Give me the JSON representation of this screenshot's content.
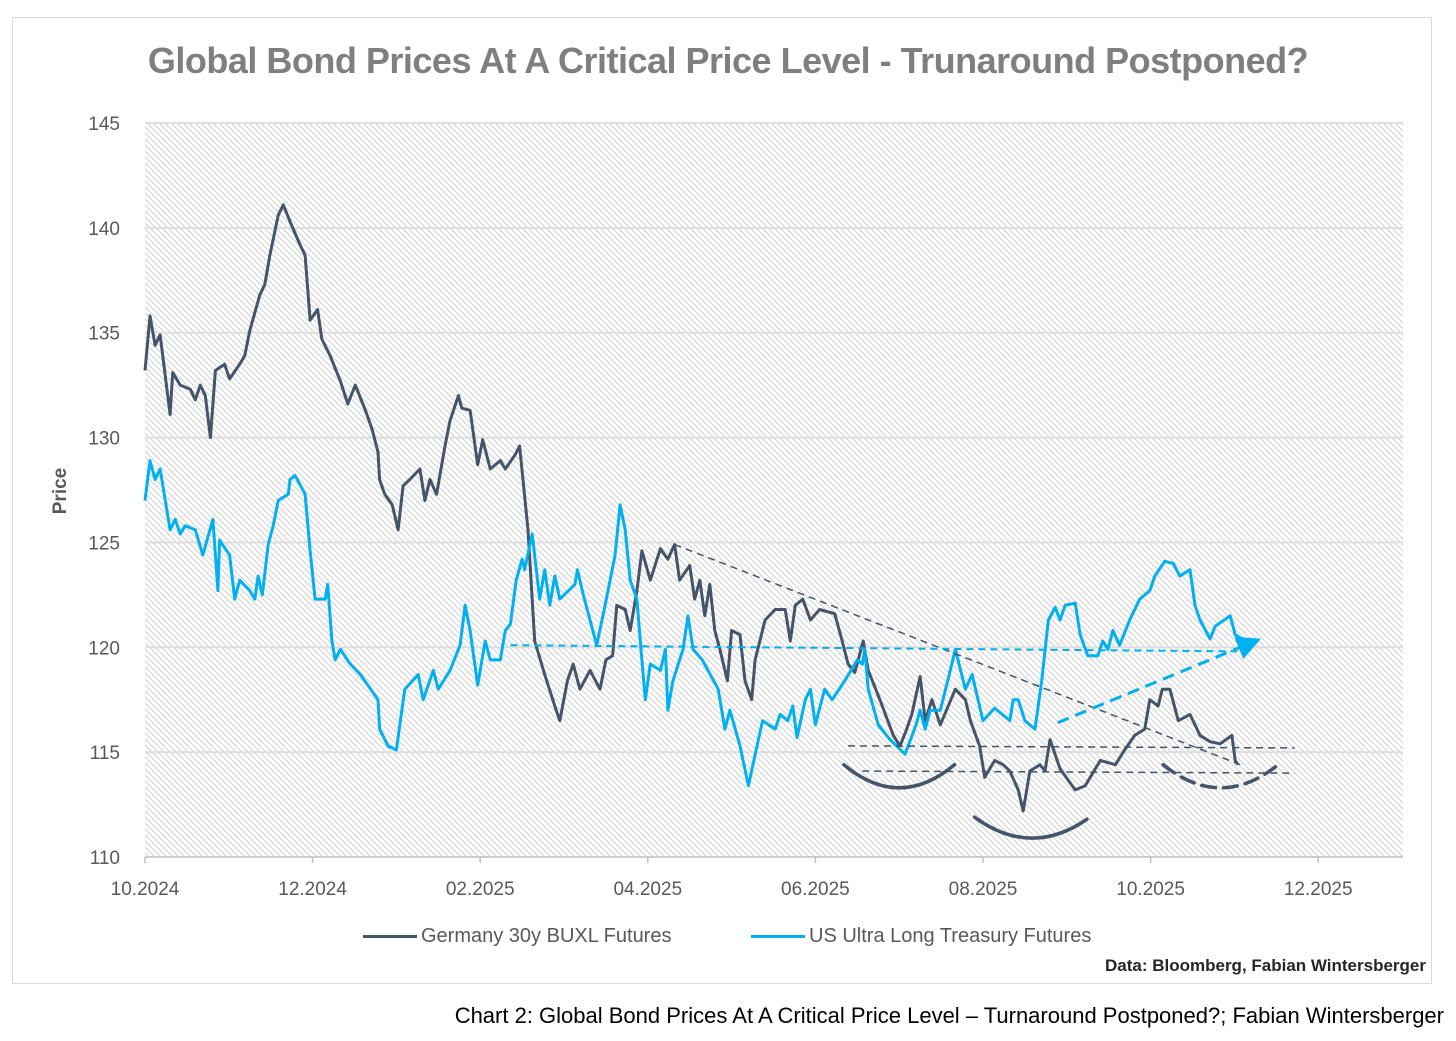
{
  "chart_data": {
    "type": "line",
    "title": "Global Bond Prices At A Critical Price Level - Trunaround Postponed?",
    "xlabel": "",
    "ylabel": "Price",
    "ylim": [
      110,
      145
    ],
    "yticks": [
      110,
      115,
      120,
      125,
      130,
      135,
      140,
      145
    ],
    "x_unit": "months since 10.2024",
    "xlim": [
      0,
      15
    ],
    "xtick_labels": [
      "10.2024",
      "12.2024",
      "02.2025",
      "04.2025",
      "06.2025",
      "08.2025",
      "10.2025",
      "12.2025"
    ],
    "xtick_values": [
      0,
      2,
      4,
      6,
      8,
      10,
      12,
      14
    ],
    "grid": "horizontal",
    "legend_position": "bottom",
    "colors": {
      "germany": "#44546a",
      "us": "#00b0f0",
      "grid": "#dedede",
      "hatch": "#d0d0d0"
    },
    "series": [
      {
        "name": "Germany 30y BUXL Futures",
        "color": "#44546a",
        "x": [
          0.0,
          0.06,
          0.12,
          0.18,
          0.3,
          0.33,
          0.42,
          0.54,
          0.6,
          0.66,
          0.72,
          0.78,
          0.84,
          0.95,
          1.01,
          1.13,
          1.19,
          1.25,
          1.37,
          1.43,
          1.49,
          1.59,
          1.65,
          1.73,
          1.85,
          1.91,
          1.97,
          2.06,
          2.11,
          2.21,
          2.33,
          2.42,
          2.51,
          2.63,
          2.71,
          2.78,
          2.8,
          2.86,
          2.95,
          3.02,
          3.08,
          3.16,
          3.28,
          3.34,
          3.4,
          3.48,
          3.58,
          3.64,
          3.74,
          3.78,
          3.88,
          3.97,
          4.03,
          4.12,
          4.24,
          4.3,
          4.42,
          4.47,
          4.57,
          4.65,
          4.77,
          4.89,
          4.95,
          5.04,
          5.11,
          5.19,
          5.31,
          5.43,
          5.5,
          5.58,
          5.63,
          5.73,
          5.79,
          5.87,
          5.93,
          6.03,
          6.15,
          6.24,
          6.32,
          6.38,
          6.5,
          6.56,
          6.62,
          6.68,
          6.74,
          6.8,
          6.86,
          6.95,
          7.0,
          7.1,
          7.16,
          7.24,
          7.28,
          7.4,
          7.52,
          7.64,
          7.7,
          7.76,
          7.85,
          7.94,
          8.05,
          8.23,
          8.32,
          8.39,
          8.47,
          8.57,
          8.63,
          8.77,
          8.93,
          9.01,
          9.08,
          9.15,
          9.25,
          9.31,
          9.39,
          9.49,
          9.67,
          9.79,
          9.85,
          9.96,
          10.02,
          10.14,
          10.24,
          10.32,
          10.42,
          10.48,
          10.56,
          10.68,
          10.74,
          10.8,
          10.92,
          11.1,
          11.22,
          11.4,
          11.58,
          11.69,
          11.81,
          11.93,
          11.99,
          12.09,
          12.14,
          12.23,
          12.33,
          12.47,
          12.59,
          12.71,
          12.83,
          12.97,
          13.01,
          13.04
        ],
        "y": [
          133.2,
          135.8,
          134.4,
          134.9,
          131.1,
          133.1,
          132.5,
          132.3,
          131.8,
          132.5,
          132.0,
          130.0,
          133.2,
          133.5,
          132.8,
          133.5,
          133.9,
          135.1,
          136.8,
          137.3,
          138.7,
          140.6,
          141.1,
          140.3,
          139.2,
          138.7,
          135.6,
          136.1,
          134.7,
          133.9,
          132.7,
          131.6,
          132.5,
          131.3,
          130.4,
          129.3,
          128.0,
          127.3,
          126.8,
          125.6,
          127.7,
          128.0,
          128.5,
          127.0,
          128.0,
          127.3,
          129.6,
          130.8,
          132.0,
          131.4,
          131.3,
          128.7,
          129.9,
          128.5,
          128.9,
          128.5,
          129.2,
          129.6,
          125.6,
          120.3,
          118.7,
          117.2,
          116.5,
          118.4,
          119.2,
          118.0,
          118.9,
          118.0,
          119.4,
          119.6,
          122.0,
          121.8,
          120.8,
          122.7,
          124.6,
          123.2,
          124.7,
          124.2,
          124.9,
          123.2,
          123.9,
          122.3,
          123.2,
          121.5,
          123.0,
          120.8,
          119.9,
          118.4,
          120.8,
          120.6,
          118.4,
          117.5,
          119.4,
          121.3,
          121.8,
          121.8,
          120.3,
          122.0,
          122.3,
          121.3,
          121.8,
          121.6,
          120.3,
          119.2,
          118.8,
          120.3,
          118.9,
          117.5,
          115.8,
          115.3,
          116.0,
          116.8,
          118.6,
          116.5,
          117.5,
          116.3,
          118.0,
          117.5,
          116.5,
          115.3,
          113.8,
          114.6,
          114.4,
          114.1,
          113.2,
          112.2,
          114.1,
          114.4,
          114.1,
          115.6,
          114.2,
          113.2,
          113.4,
          114.6,
          114.4,
          115.1,
          115.8,
          116.1,
          117.5,
          117.2,
          118.0,
          118.0,
          116.5,
          116.8,
          115.8,
          115.5,
          115.4,
          115.8,
          114.6,
          114.4
        ]
      },
      {
        "name": "US Ultra Long Treasury Futures",
        "color": "#00b0f0",
        "x": [
          0.0,
          0.06,
          0.12,
          0.18,
          0.3,
          0.36,
          0.42,
          0.48,
          0.6,
          0.69,
          0.81,
          0.87,
          0.89,
          1.01,
          1.07,
          1.13,
          1.25,
          1.31,
          1.35,
          1.4,
          1.47,
          1.53,
          1.59,
          1.71,
          1.73,
          1.79,
          1.91,
          1.97,
          2.03,
          2.15,
          2.18,
          2.23,
          2.27,
          2.33,
          2.45,
          2.57,
          2.78,
          2.8,
          2.9,
          3.0,
          3.04,
          3.1,
          3.26,
          3.32,
          3.44,
          3.5,
          3.64,
          3.76,
          3.82,
          3.88,
          3.97,
          4.06,
          4.12,
          4.24,
          4.3,
          4.36,
          4.43,
          4.5,
          4.53,
          4.62,
          4.71,
          4.77,
          4.83,
          4.89,
          4.95,
          5.13,
          5.16,
          5.23,
          5.31,
          5.39,
          5.49,
          5.61,
          5.67,
          5.73,
          5.79,
          5.87,
          5.91,
          5.97,
          6.03,
          6.15,
          6.21,
          6.24,
          6.3,
          6.42,
          6.48,
          6.54,
          6.65,
          6.84,
          6.92,
          6.98,
          7.1,
          7.2,
          7.32,
          7.37,
          7.52,
          7.58,
          7.67,
          7.73,
          7.78,
          7.88,
          7.94,
          8.0,
          8.11,
          8.2,
          8.35,
          8.5,
          8.56,
          8.59,
          8.63,
          8.75,
          8.89,
          9.07,
          9.2,
          9.25,
          9.31,
          9.37,
          9.49,
          9.61,
          9.67,
          9.79,
          9.87,
          10.0,
          10.14,
          10.32,
          10.36,
          10.42,
          10.5,
          10.62,
          10.7,
          10.78,
          10.86,
          10.92,
          10.98,
          11.1,
          11.16,
          11.25,
          11.37,
          11.43,
          11.49,
          11.55,
          11.63,
          11.75,
          11.87,
          11.99,
          12.05,
          12.17,
          12.27,
          12.35,
          12.47,
          12.53,
          12.59,
          12.71,
          12.77,
          12.95,
          13.01,
          13.13,
          13.19
        ],
        "y": [
          127.0,
          128.9,
          128.0,
          128.5,
          125.6,
          126.1,
          125.4,
          125.8,
          125.6,
          124.4,
          126.1,
          122.7,
          125.1,
          124.4,
          122.3,
          123.2,
          122.7,
          122.3,
          123.4,
          122.5,
          124.9,
          125.8,
          127.0,
          127.3,
          128.0,
          128.2,
          127.3,
          124.6,
          122.3,
          122.3,
          123.0,
          120.3,
          119.4,
          119.9,
          119.2,
          118.7,
          117.5,
          116.1,
          115.3,
          115.1,
          116.3,
          118.0,
          118.7,
          117.5,
          118.9,
          118.0,
          118.9,
          120.1,
          122.0,
          120.8,
          118.2,
          120.3,
          119.4,
          119.4,
          120.8,
          121.1,
          123.2,
          124.2,
          123.7,
          125.4,
          122.3,
          123.7,
          122.0,
          123.4,
          122.3,
          123.0,
          123.7,
          122.5,
          121.3,
          120.1,
          122.0,
          124.4,
          126.8,
          125.6,
          123.2,
          122.3,
          120.3,
          117.5,
          119.2,
          118.9,
          119.9,
          117.0,
          118.4,
          119.9,
          121.5,
          119.9,
          119.4,
          118.0,
          116.1,
          117.0,
          115.3,
          113.4,
          115.6,
          116.5,
          116.1,
          116.8,
          116.5,
          117.2,
          115.7,
          117.5,
          118.0,
          116.3,
          118.0,
          117.5,
          118.4,
          119.4,
          119.2,
          119.9,
          118.0,
          116.3,
          115.6,
          114.9,
          116.3,
          117.0,
          116.1,
          117.0,
          117.0,
          118.9,
          119.9,
          118.0,
          118.7,
          116.5,
          117.1,
          116.5,
          117.5,
          117.5,
          116.5,
          116.1,
          118.4,
          121.3,
          121.9,
          121.3,
          122.0,
          122.1,
          120.6,
          119.6,
          119.6,
          120.3,
          119.9,
          120.8,
          120.1,
          121.3,
          122.3,
          122.7,
          123.4,
          124.1,
          124.0,
          123.4,
          123.7,
          122.0,
          121.3,
          120.4,
          121.0,
          121.5,
          120.6,
          120.3,
          120.3
        ]
      }
    ],
    "annotations": {
      "trendlines": [
        {
          "kind": "dashed",
          "color": "#44546a",
          "from": [
            6.32,
            124.9
          ],
          "to": [
            13.07,
            114.4
          ]
        },
        {
          "kind": "dashed",
          "color": "#00b0f0",
          "from": [
            4.36,
            120.1
          ],
          "to": [
            13.19,
            119.8
          ]
        },
        {
          "kind": "dashed",
          "color": "#44546a",
          "from": [
            8.39,
            115.3
          ],
          "to": [
            13.72,
            115.2
          ]
        },
        {
          "kind": "dashed",
          "color": "#44546a",
          "from": [
            8.56,
            114.1
          ],
          "to": [
            13.72,
            114.0
          ]
        },
        {
          "kind": "arrow",
          "color": "#00b0f0",
          "from": [
            10.89,
            116.4
          ],
          "to": [
            13.25,
            120.3
          ]
        }
      ],
      "arcs": [
        {
          "kind": "solid",
          "from": [
            8.34,
            114.4
          ],
          "to": [
            9.66,
            114.4
          ],
          "bottom": 113.3
        },
        {
          "kind": "solid",
          "from": [
            9.9,
            111.9
          ],
          "to": [
            11.24,
            111.8
          ],
          "bottom": 110.9
        },
        {
          "kind": "dashed",
          "from": [
            12.15,
            114.4
          ],
          "to": [
            13.49,
            114.3
          ],
          "bottom": 113.3
        }
      ]
    }
  },
  "legend": {
    "germany": "Germany 30y BUXL Futures",
    "us": "US Ultra Long Treasury Futures"
  },
  "source": "Data: Bloomberg, Fabian Wintersberger",
  "caption": "Chart 2: Global Bond Prices At A Critical Price Level – Turnaround Postponed?;  Fabian Wintersberger"
}
